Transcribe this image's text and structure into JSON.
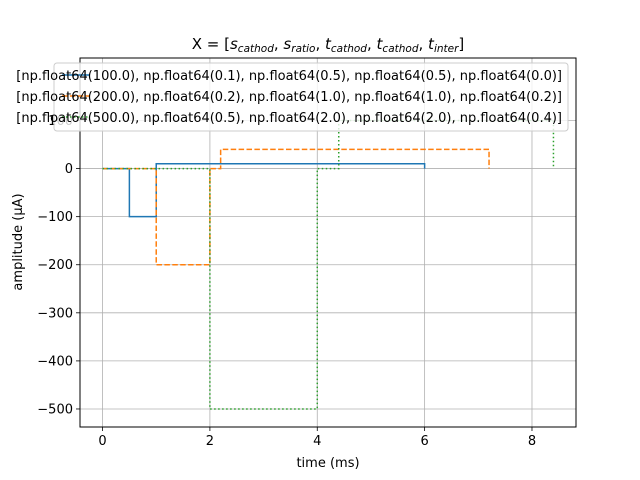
{
  "chart_data": {
    "type": "line",
    "title": "X = [s_cathod, s_ratio, t_cathod, t_cathod, t_inter]",
    "title_parts": {
      "prefix": "X = [",
      "items": [
        {
          "base": "s",
          "sub": "cathod"
        },
        {
          "base": "s",
          "sub": "ratio"
        },
        {
          "base": "t",
          "sub": "cathod"
        },
        {
          "base": "t",
          "sub": "cathod"
        },
        {
          "base": "t",
          "sub": "inter"
        }
      ],
      "separator": ", ",
      "suffix": "]"
    },
    "xlabel": "time (ms)",
    "ylabel": "amplitude (μA)",
    "xlim": [
      -0.42,
      8.82
    ],
    "ylim": [
      -537.5,
      230
    ],
    "xticks": [
      0,
      2,
      4,
      6,
      8
    ],
    "yticks": [
      -500,
      -400,
      -300,
      -200,
      -100,
      0,
      100
    ],
    "xtick_labels": [
      "0",
      "2",
      "4",
      "6",
      "8"
    ],
    "ytick_labels": [
      "−500",
      "−400",
      "−300",
      "−200",
      "−100",
      "0",
      "100"
    ],
    "grid": true,
    "legend_position": "upper center, overflowing plot",
    "series": [
      {
        "name": "[np.float64(100.0), np.float64(0.1), np.float64(0.5), np.float64(0.5), np.float64(0.0)]",
        "color": "#1f77b4",
        "style": "solid",
        "x": [
          0,
          0.5,
          0.5,
          1.0,
          1.0,
          6.0,
          6.0
        ],
        "y": [
          0,
          0,
          -100,
          -100,
          10,
          10,
          0
        ]
      },
      {
        "name": "[np.float64(200.0), np.float64(0.2), np.float64(1.0), np.float64(1.0), np.float64(0.2)]",
        "color": "#ff7f0e",
        "style": "dashed",
        "x": [
          0,
          1.0,
          1.0,
          2.0,
          2.0,
          2.2,
          2.2,
          7.2,
          7.2
        ],
        "y": [
          0,
          0,
          -200,
          -200,
          0,
          0,
          40,
          40,
          0
        ]
      },
      {
        "name": "[np.float64(500.0), np.float64(0.5), np.float64(2.0), np.float64(2.0), np.float64(0.4)]",
        "color": "#2ca02c",
        "style": "dotted",
        "x": [
          0,
          2.0,
          2.0,
          4.0,
          4.0,
          4.4,
          4.4,
          8.4,
          8.4
        ],
        "y": [
          0,
          0,
          -500,
          -500,
          0,
          0,
          100,
          100,
          0
        ]
      }
    ]
  }
}
